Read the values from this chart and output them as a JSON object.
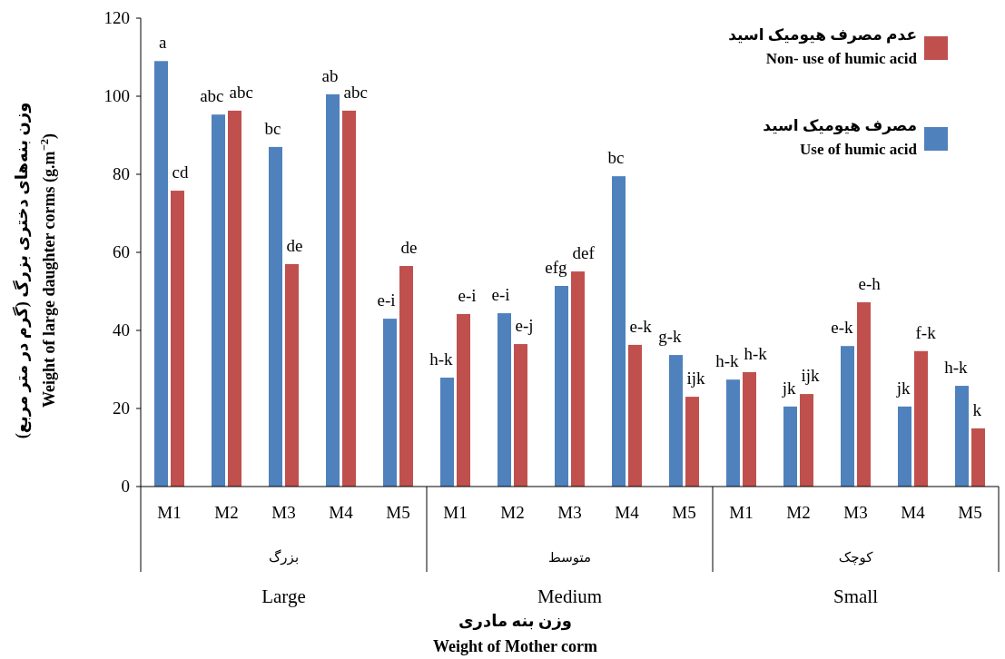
{
  "chart_data": {
    "type": "bar",
    "ylabel": "وزن بنه‌های دختری بزرگ (گرم در متر مربع)\nWeight of large daughter corms (g.m$^{−2}$)",
    "categories": [
      "M1",
      "M2",
      "M3",
      "M4",
      "M5",
      "M1",
      "M2",
      "M3",
      "M4",
      "M5",
      "M1",
      "M2",
      "M3",
      "M4",
      "M5"
    ],
    "series": [
      {
        "name": "مصرف هیومیک اسید\nUse of humic acid",
        "color": "#4f81bd",
        "values": [
          109,
          95.3,
          87,
          100.5,
          43,
          27.9,
          44.4,
          51.4,
          79.5,
          33.7,
          27.4,
          20.5,
          36,
          20.5,
          25.8
        ],
        "value_labels": [
          "a",
          "abc",
          "bc",
          "ab",
          "e-i",
          "h-k",
          "e-i",
          "efg",
          "bc",
          "g-k",
          "h-k",
          "jk",
          "e-k",
          "jk",
          "h-k"
        ]
      },
      {
        "name": "عدم مصرف هیومیک اسید\nNon- use of humic acid",
        "color": "#c0504d",
        "values": [
          75.8,
          96.3,
          57,
          96.3,
          56.5,
          44.2,
          36.5,
          55.1,
          36.3,
          23,
          29.3,
          23.7,
          47.2,
          34.7,
          14.9
        ],
        "value_labels": [
          "cd",
          "abc",
          "de",
          "abc",
          "de",
          "e-i",
          "e-j",
          "def",
          "e-k",
          "ijk",
          "h-k",
          "ijk",
          "e-h",
          "f-k",
          "k"
        ]
      }
    ],
    "annotations": [
      "بزرگ",
      "Large",
      "متوسط",
      "Medium",
      "کوچک",
      "Small",
      "وزن بنه مادری\nWeight of Mother corm"
    ],
    "ylim": [
      0,
      120
    ],
    "yticks": [
      0,
      20,
      40,
      60,
      80,
      100,
      120
    ],
    "grid": false,
    "legend": "top right"
  }
}
